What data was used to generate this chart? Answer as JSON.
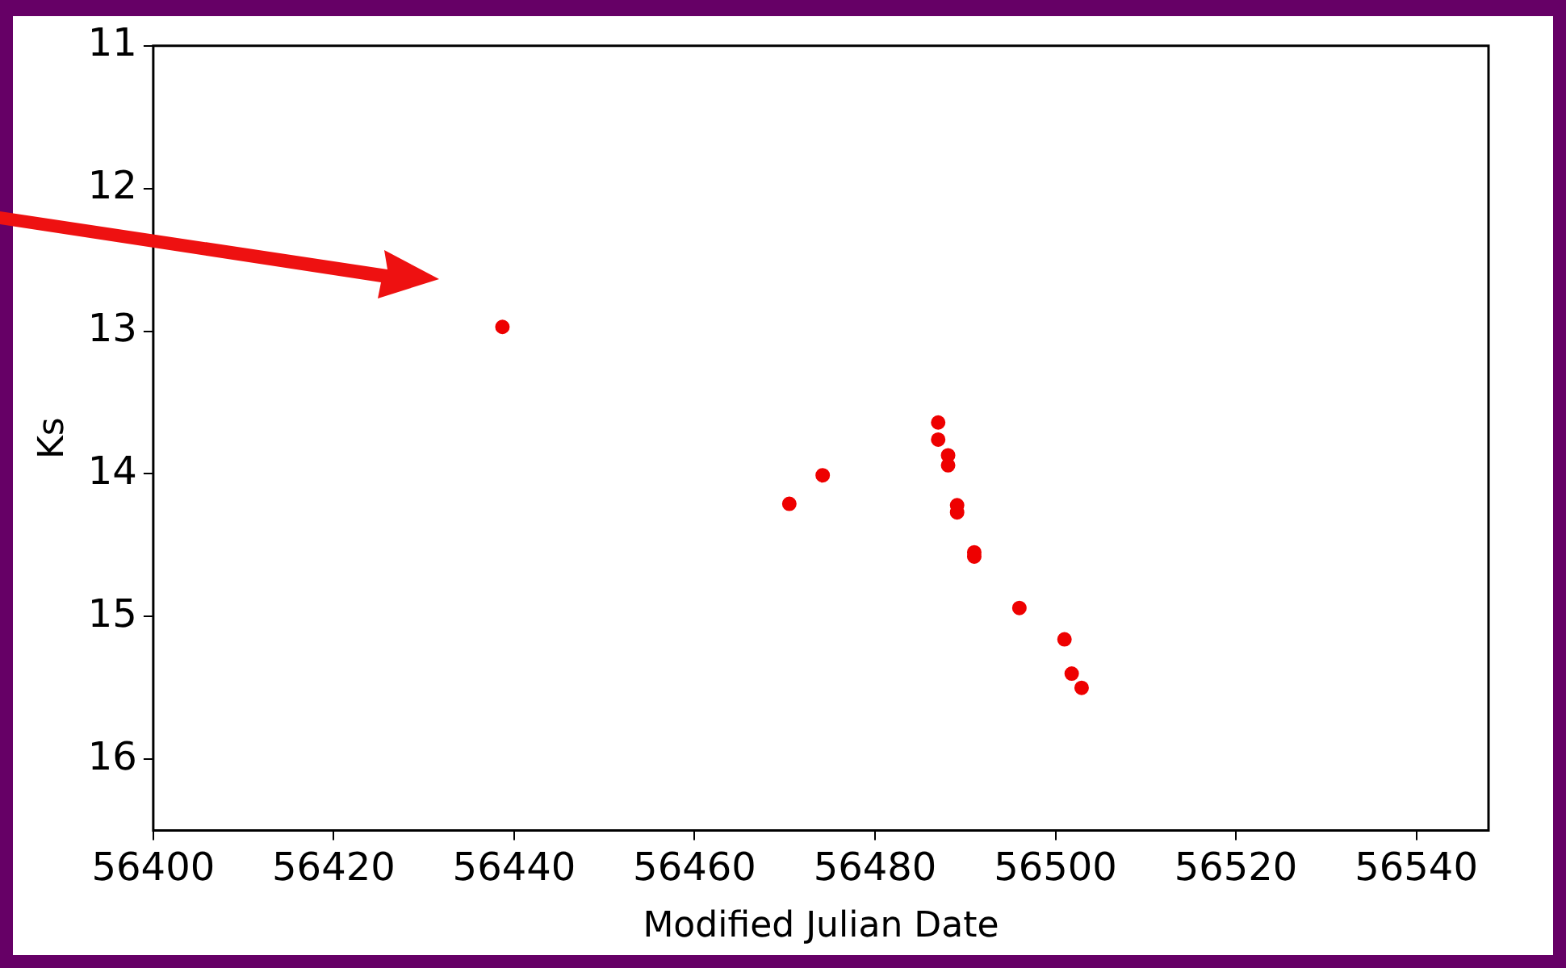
{
  "chart_data": {
    "type": "scatter",
    "xlabel": "Modified Julian Date",
    "ylabel": "Ks",
    "x": [
      56438.7,
      56470.5,
      56474.2,
      56487.0,
      56487.0,
      56488.1,
      56488.1,
      56489.1,
      56489.1,
      56491.0,
      56491.0,
      56496.0,
      56501.0,
      56501.8,
      56502.9
    ],
    "series": [
      {
        "color": "#ee0000",
        "values": [
          12.97,
          14.21,
          14.01,
          13.64,
          13.76,
          13.87,
          13.94,
          14.22,
          14.27,
          14.55,
          14.58,
          14.94,
          15.16,
          15.4,
          15.5
        ]
      }
    ],
    "xlim": [
      56400,
      56548
    ],
    "xticks": [
      56400,
      56420,
      56440,
      56460,
      56480,
      56500,
      56520,
      56540
    ],
    "ylim": [
      16.5,
      11
    ],
    "yticks": [
      11,
      12,
      13,
      14,
      15,
      16
    ],
    "grid": false,
    "legend": false,
    "marker": "circle"
  }
}
